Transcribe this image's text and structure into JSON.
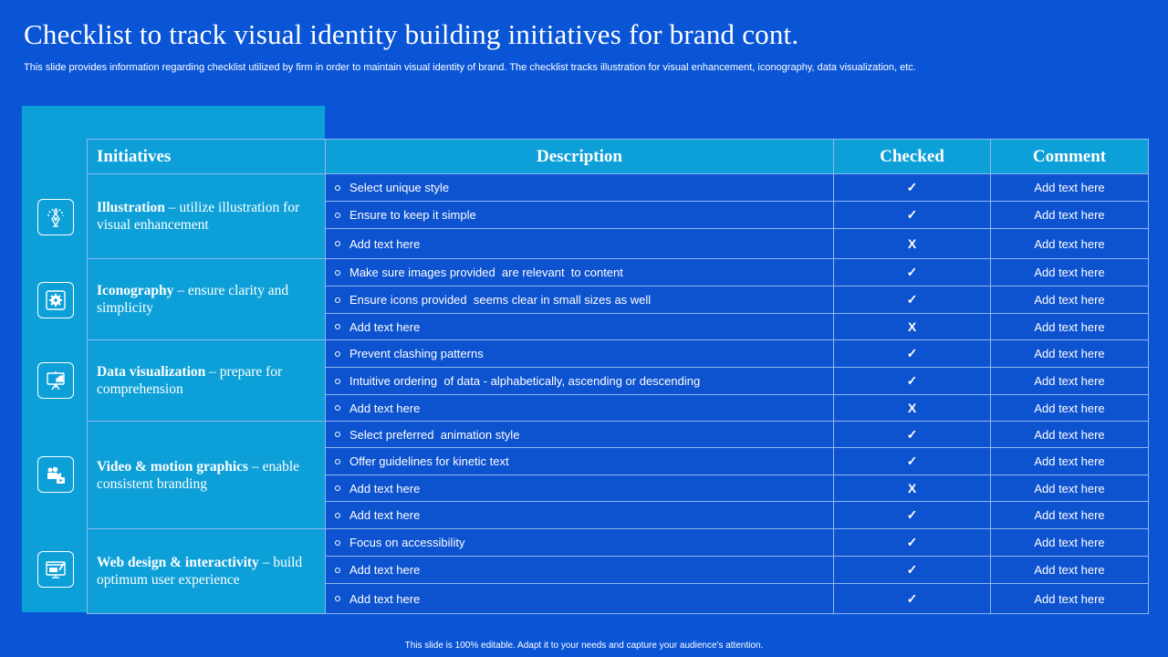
{
  "title": "Checklist to track visual identity building initiatives for brand cont.",
  "subtitle": "This slide provides information regarding checklist utilized by firm in order to maintain visual identity of brand. The checklist tracks illustration for visual enhancement, iconography, data visualization, etc.",
  "headers": {
    "initiatives": "Initiatives",
    "description": "Description",
    "checked": "Checked",
    "comment": "Comment"
  },
  "groups": [
    {
      "icon": "pen-tool-icon",
      "name": "Illustration",
      "rest": " – utilize illustration for visual enhancement",
      "rows": [
        {
          "desc": "Select unique style",
          "checked": "✓",
          "comment": "Add text here"
        },
        {
          "desc": "Ensure to keep it simple",
          "checked": "✓",
          "comment": "Add text here"
        },
        {
          "desc": "Add text here",
          "checked": "X",
          "comment": "Add text here"
        }
      ]
    },
    {
      "icon": "gear-icon",
      "name": "Iconography",
      "rest": " – ensure clarity and simplicity",
      "rows": [
        {
          "desc": "Make sure images provided  are relevant  to content",
          "checked": "✓",
          "comment": "Add text here"
        },
        {
          "desc": "Ensure icons provided  seems clear in small sizes as well",
          "checked": "✓",
          "comment": "Add text here"
        },
        {
          "desc": "Add text here",
          "checked": "X",
          "comment": "Add text here"
        }
      ]
    },
    {
      "icon": "presentation-chart-icon",
      "name": "Data visualization",
      "rest": " – prepare for comprehension",
      "rows": [
        {
          "desc": "Prevent clashing patterns",
          "checked": "✓",
          "comment": "Add text here"
        },
        {
          "desc": "Intuitive ordering  of data - alphabetically, ascending or descending",
          "checked": "✓",
          "comment": "Add text here"
        },
        {
          "desc": "Add text here",
          "checked": "X",
          "comment": "Add text here"
        }
      ]
    },
    {
      "icon": "video-camera-icon",
      "name": "Video & motion graphics",
      "rest": " – enable consistent branding",
      "rows": [
        {
          "desc": "Select preferred  animation style",
          "checked": "✓",
          "comment": "Add text here"
        },
        {
          "desc": "Offer guidelines for kinetic text",
          "checked": "✓",
          "comment": "Add text here"
        },
        {
          "desc": "Add text here",
          "checked": "X",
          "comment": "Add text here"
        },
        {
          "desc": "Add text here",
          "checked": "✓",
          "comment": "Add text here"
        }
      ]
    },
    {
      "icon": "web-design-icon",
      "name": "Web design & interactivity",
      "rest": " – build optimum user experience",
      "rows": [
        {
          "desc": "Focus on accessibility",
          "checked": "✓",
          "comment": "Add text here"
        },
        {
          "desc": "Add text here",
          "checked": "✓",
          "comment": "Add text here"
        },
        {
          "desc": "Add text here",
          "checked": "✓",
          "comment": "Add text here"
        }
      ]
    }
  ],
  "footer": "This slide is 100% editable.  Adapt it to your needs and capture your audience's attention."
}
